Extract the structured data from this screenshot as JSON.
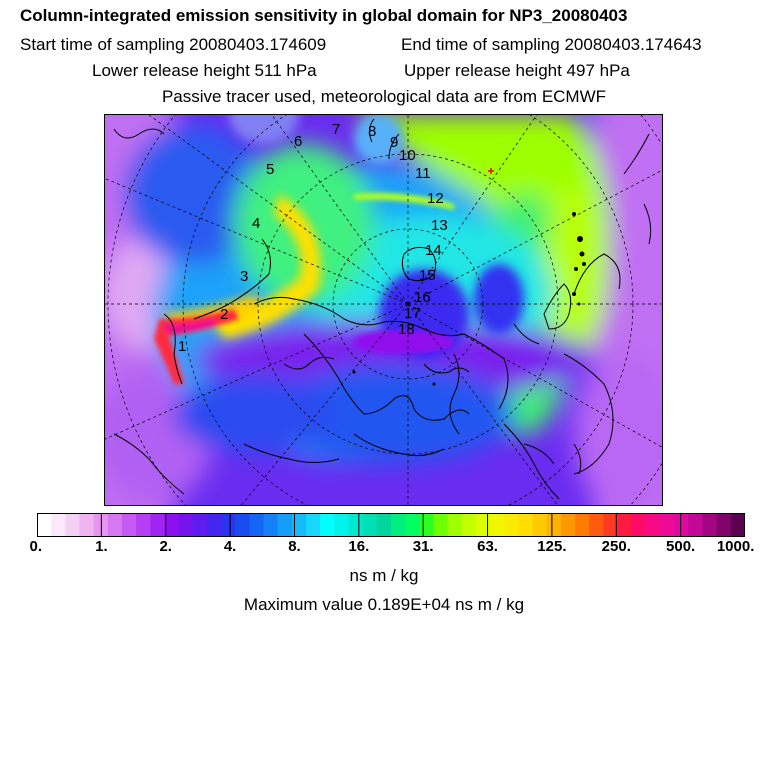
{
  "header": {
    "title": "Column-integrated emission sensitivity in global domain for NP3_20080403",
    "start_time": "Start time of sampling 20080403.174609",
    "end_time": "End time of sampling 20080403.174643",
    "lower_height": "Lower release height  511 hPa",
    "upper_height": "Upper release height  497 hPa",
    "tracer_note": "Passive tracer used, meteorological data are from ECMWF"
  },
  "map": {
    "trajectory_labels": [
      "1",
      "2",
      "3",
      "4",
      "5",
      "6",
      "7",
      "8",
      "9",
      "10",
      "11",
      "12",
      "13",
      "14",
      "15",
      "16",
      "17",
      "18"
    ],
    "release_marker": "red-cross-marker"
  },
  "colorbar": {
    "units": "ns m / kg",
    "tick_labels": [
      "0.",
      "1.",
      "2.",
      "4.",
      "8.",
      "16.",
      "31.",
      "63.",
      "125.",
      "250.",
      "500.",
      "1000."
    ],
    "colors": [
      "#ffffff",
      "#fbe8fb",
      "#f5d0f5",
      "#efb4ef",
      "#e696ee",
      "#d877f2",
      "#c85af4",
      "#b63ff4",
      "#a224f2",
      "#8c10f0",
      "#7614ee",
      "#5f1cee",
      "#4426ee",
      "#2b34f0",
      "#1a4cf2",
      "#1566f4",
      "#1482f6",
      "#149ef8",
      "#16bafa",
      "#18d6fc",
      "#00ffff",
      "#00f3e8",
      "#00e8cf",
      "#00deb6",
      "#00d69c",
      "#00ee80",
      "#00ff60",
      "#2aff20",
      "#70ff00",
      "#9eff00",
      "#c4ff00",
      "#deff00",
      "#f0f800",
      "#faec00",
      "#ffde00",
      "#ffca00",
      "#ffb200",
      "#ff9800",
      "#ff7c00",
      "#ff5a10",
      "#ff3a22",
      "#ff1a40",
      "#ff0a66",
      "#f80a86",
      "#ec0a96",
      "#de0aa0",
      "#c20896",
      "#a20680",
      "#80046a",
      "#5a0250"
    ]
  },
  "footer": {
    "max_value": "Maximum value  0.189E+04 ns m / kg"
  }
}
